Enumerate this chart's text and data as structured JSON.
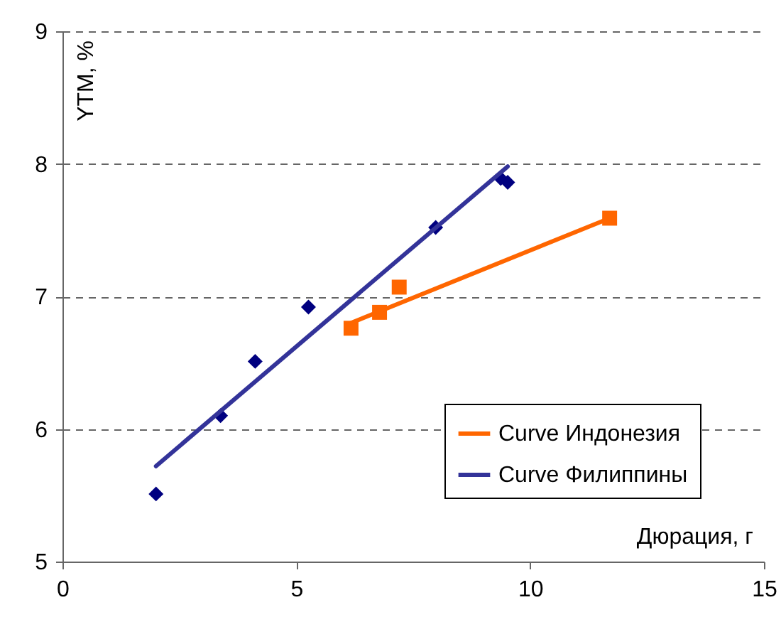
{
  "chart_data": {
    "type": "scatter",
    "xlabel": "Дюрация, г",
    "ylabel": "YTM, %",
    "xlim": [
      0,
      15
    ],
    "xticks": [
      0,
      5,
      10,
      15
    ],
    "ylim": [
      5,
      9
    ],
    "yticks": [
      5,
      6,
      7,
      8,
      9
    ],
    "grid": "y",
    "line_style": "solid",
    "legend": "bottom right",
    "series": [
      {
        "marker": "square",
        "color": "#ff6600",
        "x": [
          6.17,
          6.78,
          7.2,
          11.7
        ],
        "values": [
          6.76,
          6.88,
          7.07,
          7.59
        ]
      },
      {
        "marker": "diamond",
        "color": "#000080",
        "x": [
          2.0,
          3.38,
          4.12,
          5.26,
          7.98,
          9.37,
          9.52
        ],
        "values": [
          5.51,
          6.1,
          6.51,
          6.92,
          7.52,
          7.89,
          7.86
        ]
      },
      {
        "type": "line",
        "marker": "none",
        "name": "Curve Индонезия",
        "color": "#ff6600",
        "x": [
          6.17,
          11.7
        ],
        "values": [
          6.8,
          7.59
        ]
      },
      {
        "type": "line",
        "marker": "none",
        "name": "Curve Филиппины",
        "color": "#333399",
        "x": [
          2.0,
          9.52
        ],
        "values": [
          5.72,
          7.98
        ]
      }
    ]
  }
}
